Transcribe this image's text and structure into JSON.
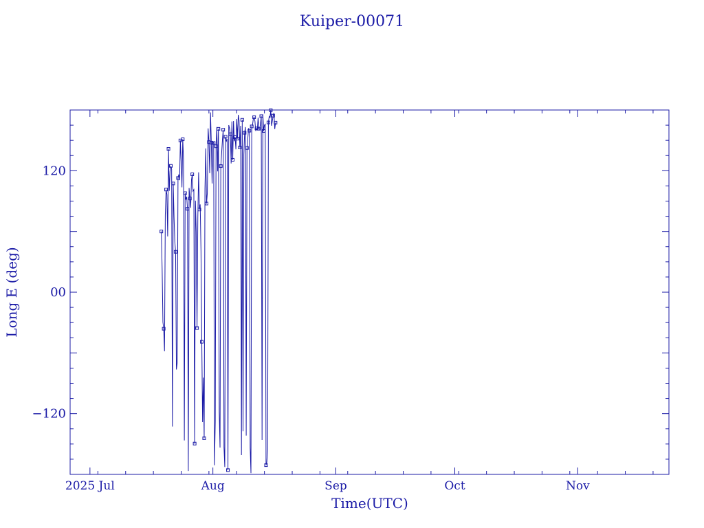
{
  "chart_data": {
    "type": "line",
    "title": "Kuiper-00071",
    "xlabel": "Time(UTC)",
    "ylabel": "Long E (deg)",
    "x_tick_labels": [
      "2025 Jul",
      "Aug",
      "Sep",
      "Oct",
      "Nov"
    ],
    "x_tick_dates": [
      "2025-07-01",
      "2025-08-01",
      "2025-09-01",
      "2025-10-01",
      "2025-11-01"
    ],
    "xlim": [
      "2025-06-26",
      "2025-11-24"
    ],
    "y_tick_labels": [
      "120",
      "00",
      "−120"
    ],
    "y_tick_values": [
      120,
      0,
      -120
    ],
    "ylim": [
      -180,
      180
    ],
    "grid": false,
    "legend": "none",
    "marker": "square",
    "series": [
      {
        "sampling_days": 0.2,
        "values": [
          [
            60.0,
            23.8,
            -29.6,
            -36.1,
            -58.3,
            76.4,
            101.4,
            96.4,
            55.1,
            141.6,
            100.1,
            119.6,
            124.8,
            121.4,
            -132.8,
            107.4,
            74.4
          ],
          [
            49.8,
            39.9,
            -76.4,
            -69.9,
            112.8,
            116.3,
            110.6,
            149.9,
            129.2,
            103.6,
            151.1,
            131.3,
            -146.5,
            97.8,
            91.4,
            94.2
          ],
          [
            82.4,
            -176.7,
            103.0,
            92.6,
            83.4,
            111.0,
            116.5,
            99.9,
            101.3,
            -149.6,
            90.4,
            59.7,
            -35.4,
            74.3,
            118.4,
            81.7
          ],
          [
            86.7,
            40.3,
            -49.0,
            -128.4,
            -84.4,
            -144.3,
            102.4,
            142.0,
            87.6,
            97.8,
            161.8,
            148.3,
            117.6,
            177.6,
            147.7,
            107.4
          ],
          [
            148.7,
            147.4,
            -171.0,
            -127.7,
            144.2,
            163.2,
            119.4,
            161.4,
            -118.3,
            -153.5,
            124.6,
            137.3,
            150.1,
            160.5,
            -153.3,
            -172.7
          ],
          [
            153.6,
            149.3,
            151.4,
            -175.8,
            165.1,
            162.1,
            156.1,
            127.2,
            168.7,
            130.8,
            169.1,
            149.2,
            153.2,
            141.1,
            171.2,
            151.7
          ],
          [
            175.2,
            169.7,
            143.0,
            164.4,
            -161.0,
            170.3,
            -137.4,
            136.0,
            157.5,
            163.1,
            -141.7,
            142.5,
            151.8,
            162.0,
            159.6,
            -153.7
          ],
          [
            -178.8,
            163.8,
            165.4,
            171.4,
            172.9,
            169.0,
            159.3,
            161.8,
            160.1,
            172.4,
            161.5,
            160.9,
            166.5,
            173.9,
            -146.0,
            175.7
          ],
          [
            159.3,
            165.1,
            165.9,
            -170.9,
            -168.1,
            -155.8,
            167.7,
            173.6,
            172.6,
            179.8,
            164.4,
            169.4,
            174.4,
            177.0,
            161.2,
            167.5
          ]
        ]
      }
    ]
  }
}
